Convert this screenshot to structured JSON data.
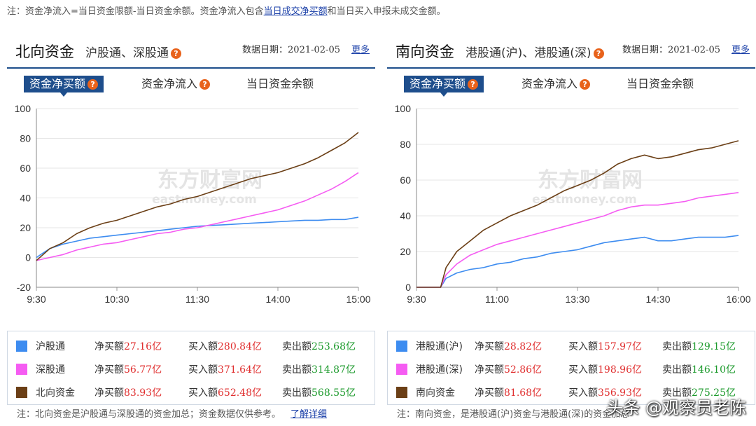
{
  "top_note": {
    "prefix": "注：资金净流入=当日资金限额-当日资金余额。资金净流入包含",
    "link": "当日成交净买额",
    "suffix": "和当日买入申报未成交金额。"
  },
  "left": {
    "title": "北向资金",
    "subtitle": "沪股通、深股通",
    "date_label": "数据日期：2021-02-05",
    "more": "更多",
    "tabs": [
      "资金净买额",
      "资金净流入",
      "当日资金余额"
    ],
    "legend": [
      {
        "name": "沪股通",
        "net_label": "净买额",
        "net": "27.16亿",
        "buy_label": "买入额",
        "buy": "280.84亿",
        "sell_label": "卖出额",
        "sell": "253.68亿",
        "color": "#3d8cf0"
      },
      {
        "name": "深股通",
        "net_label": "净买额",
        "net": "56.77亿",
        "buy_label": "买入额",
        "buy": "371.64亿",
        "sell_label": "卖出额",
        "sell": "314.87亿",
        "color": "#f55cf2"
      },
      {
        "name": "北向资金",
        "net_label": "净买额",
        "net": "83.93亿",
        "buy_label": "买入额",
        "buy": "652.48亿",
        "sell_label": "卖出额",
        "sell": "568.55亿",
        "color": "#6b3f16"
      }
    ],
    "footnote": "注：北向资金是沪股通与深股通的资金加总；资金数据仅供参考。",
    "footnote_link": "了解详细"
  },
  "right": {
    "title": "南向资金",
    "subtitle": "港股通(沪)、港股通(深)",
    "date_label": "数据日期：2021-02-05",
    "more": "更多",
    "tabs": [
      "资金净买额",
      "资金净流入",
      "当日资金余额"
    ],
    "legend": [
      {
        "name": "港股通(沪)",
        "net_label": "净买额",
        "net": "28.82亿",
        "buy_label": "买入额",
        "buy": "157.97亿",
        "sell_label": "卖出额",
        "sell": "129.15亿",
        "color": "#3d8cf0"
      },
      {
        "name": "港股通(深)",
        "net_label": "净买额",
        "net": "52.86亿",
        "buy_label": "买入额",
        "buy": "198.96亿",
        "sell_label": "卖出额",
        "sell": "146.10亿",
        "color": "#f55cf2"
      },
      {
        "name": "南向资金",
        "net_label": "净买额",
        "net": "81.68亿",
        "buy_label": "买入额",
        "buy": "356.93亿",
        "sell_label": "卖出额",
        "sell": "275.25亿",
        "color": "#6b3f16"
      }
    ],
    "footnote": "注：南向资金，是港股通(沪)资金与港股通(深)的资金加总"
  },
  "watermark_text": "头条 @观察员老陈",
  "chart_data": [
    {
      "type": "line",
      "title": "北向资金",
      "xlabel": "",
      "ylabel": "",
      "x_ticks": [
        "9:30",
        "10:30",
        "11:30",
        "14:00",
        "15:00"
      ],
      "y_ticks": [
        -20,
        0,
        20,
        40,
        60,
        80,
        100
      ],
      "ylim": [
        -20,
        100
      ],
      "grid": true,
      "watermark": "东方财富网 eastmoney.com",
      "x_index_range": [
        0,
        240
      ],
      "series": [
        {
          "name": "沪股通",
          "color": "#3d8cf0",
          "points": [
            [
              0,
              0
            ],
            [
              5,
              3
            ],
            [
              10,
              6
            ],
            [
              20,
              9
            ],
            [
              30,
              11
            ],
            [
              40,
              13
            ],
            [
              50,
              14
            ],
            [
              60,
              15
            ],
            [
              70,
              16
            ],
            [
              80,
              17
            ],
            [
              90,
              18
            ],
            [
              100,
              19
            ],
            [
              110,
              20
            ],
            [
              120,
              21
            ],
            [
              130,
              21.5
            ],
            [
              140,
              22
            ],
            [
              150,
              22.5
            ],
            [
              160,
              23
            ],
            [
              170,
              23.5
            ],
            [
              180,
              24
            ],
            [
              190,
              24.5
            ],
            [
              200,
              25
            ],
            [
              210,
              25
            ],
            [
              220,
              25.5
            ],
            [
              230,
              25.5
            ],
            [
              240,
              27
            ]
          ]
        },
        {
          "name": "深股通",
          "color": "#f55cf2",
          "points": [
            [
              0,
              -2
            ],
            [
              5,
              -1
            ],
            [
              10,
              0
            ],
            [
              20,
              2
            ],
            [
              30,
              5
            ],
            [
              40,
              7
            ],
            [
              50,
              9
            ],
            [
              60,
              10
            ],
            [
              70,
              12
            ],
            [
              80,
              14
            ],
            [
              90,
              16
            ],
            [
              100,
              17
            ],
            [
              110,
              19
            ],
            [
              120,
              20
            ],
            [
              130,
              22
            ],
            [
              140,
              24
            ],
            [
              150,
              26
            ],
            [
              160,
              28
            ],
            [
              170,
              30
            ],
            [
              180,
              32
            ],
            [
              190,
              35
            ],
            [
              200,
              38
            ],
            [
              210,
              42
            ],
            [
              220,
              46
            ],
            [
              230,
              51
            ],
            [
              240,
              57
            ]
          ]
        },
        {
          "name": "北向资金",
          "color": "#6b3f16",
          "points": [
            [
              0,
              -2
            ],
            [
              5,
              2
            ],
            [
              10,
              6
            ],
            [
              20,
              10
            ],
            [
              30,
              16
            ],
            [
              40,
              20
            ],
            [
              50,
              23
            ],
            [
              60,
              25
            ],
            [
              70,
              28
            ],
            [
              80,
              31
            ],
            [
              90,
              34
            ],
            [
              100,
              36
            ],
            [
              110,
              39
            ],
            [
              120,
              41
            ],
            [
              130,
              44
            ],
            [
              140,
              47
            ],
            [
              150,
              50
            ],
            [
              160,
              53
            ],
            [
              170,
              55
            ],
            [
              180,
              57
            ],
            [
              190,
              60
            ],
            [
              200,
              63
            ],
            [
              210,
              67
            ],
            [
              220,
              72
            ],
            [
              230,
              77
            ],
            [
              240,
              84
            ]
          ]
        }
      ]
    },
    {
      "type": "line",
      "title": "南向资金",
      "xlabel": "",
      "ylabel": "",
      "x_ticks": [
        "9:30",
        "11:00",
        "13:30",
        "14:30",
        "16:00"
      ],
      "y_ticks": [
        0,
        20,
        40,
        60,
        80,
        100
      ],
      "ylim": [
        0,
        100
      ],
      "grid": true,
      "watermark": "东方财富网 eastmoney.com",
      "x_index_range": [
        0,
        240
      ],
      "series": [
        {
          "name": "港股通(沪)",
          "color": "#3d8cf0",
          "points": [
            [
              0,
              0
            ],
            [
              10,
              0
            ],
            [
              18,
              0
            ],
            [
              22,
              5
            ],
            [
              30,
              8
            ],
            [
              40,
              10
            ],
            [
              50,
              11
            ],
            [
              60,
              13
            ],
            [
              70,
              14
            ],
            [
              80,
              16
            ],
            [
              90,
              17
            ],
            [
              100,
              19
            ],
            [
              110,
              20
            ],
            [
              120,
              21
            ],
            [
              130,
              23
            ],
            [
              140,
              25
            ],
            [
              150,
              26
            ],
            [
              160,
              27
            ],
            [
              170,
              28
            ],
            [
              180,
              26
            ],
            [
              190,
              26
            ],
            [
              200,
              27
            ],
            [
              210,
              28
            ],
            [
              220,
              28
            ],
            [
              230,
              28
            ],
            [
              240,
              29
            ]
          ]
        },
        {
          "name": "港股通(深)",
          "color": "#f55cf2",
          "points": [
            [
              0,
              0
            ],
            [
              10,
              0
            ],
            [
              18,
              0
            ],
            [
              22,
              7
            ],
            [
              30,
              13
            ],
            [
              40,
              18
            ],
            [
              50,
              21
            ],
            [
              60,
              24
            ],
            [
              70,
              26
            ],
            [
              80,
              28
            ],
            [
              90,
              30
            ],
            [
              100,
              32
            ],
            [
              110,
              34
            ],
            [
              120,
              36
            ],
            [
              130,
              38
            ],
            [
              140,
              40
            ],
            [
              150,
              43
            ],
            [
              160,
              45
            ],
            [
              170,
              46
            ],
            [
              180,
              46
            ],
            [
              190,
              47
            ],
            [
              200,
              48
            ],
            [
              210,
              50
            ],
            [
              220,
              51
            ],
            [
              230,
              52
            ],
            [
              240,
              53
            ]
          ]
        },
        {
          "name": "南向资金",
          "color": "#6b3f16",
          "points": [
            [
              0,
              0
            ],
            [
              10,
              0
            ],
            [
              18,
              0
            ],
            [
              22,
              11
            ],
            [
              30,
              20
            ],
            [
              40,
              26
            ],
            [
              50,
              32
            ],
            [
              60,
              36
            ],
            [
              70,
              40
            ],
            [
              80,
              43
            ],
            [
              90,
              46
            ],
            [
              100,
              50
            ],
            [
              110,
              54
            ],
            [
              120,
              57
            ],
            [
              130,
              60
            ],
            [
              140,
              64
            ],
            [
              150,
              69
            ],
            [
              160,
              72
            ],
            [
              170,
              74
            ],
            [
              180,
              72
            ],
            [
              190,
              73
            ],
            [
              200,
              75
            ],
            [
              210,
              77
            ],
            [
              220,
              78
            ],
            [
              230,
              80
            ],
            [
              240,
              82
            ]
          ]
        }
      ]
    }
  ]
}
